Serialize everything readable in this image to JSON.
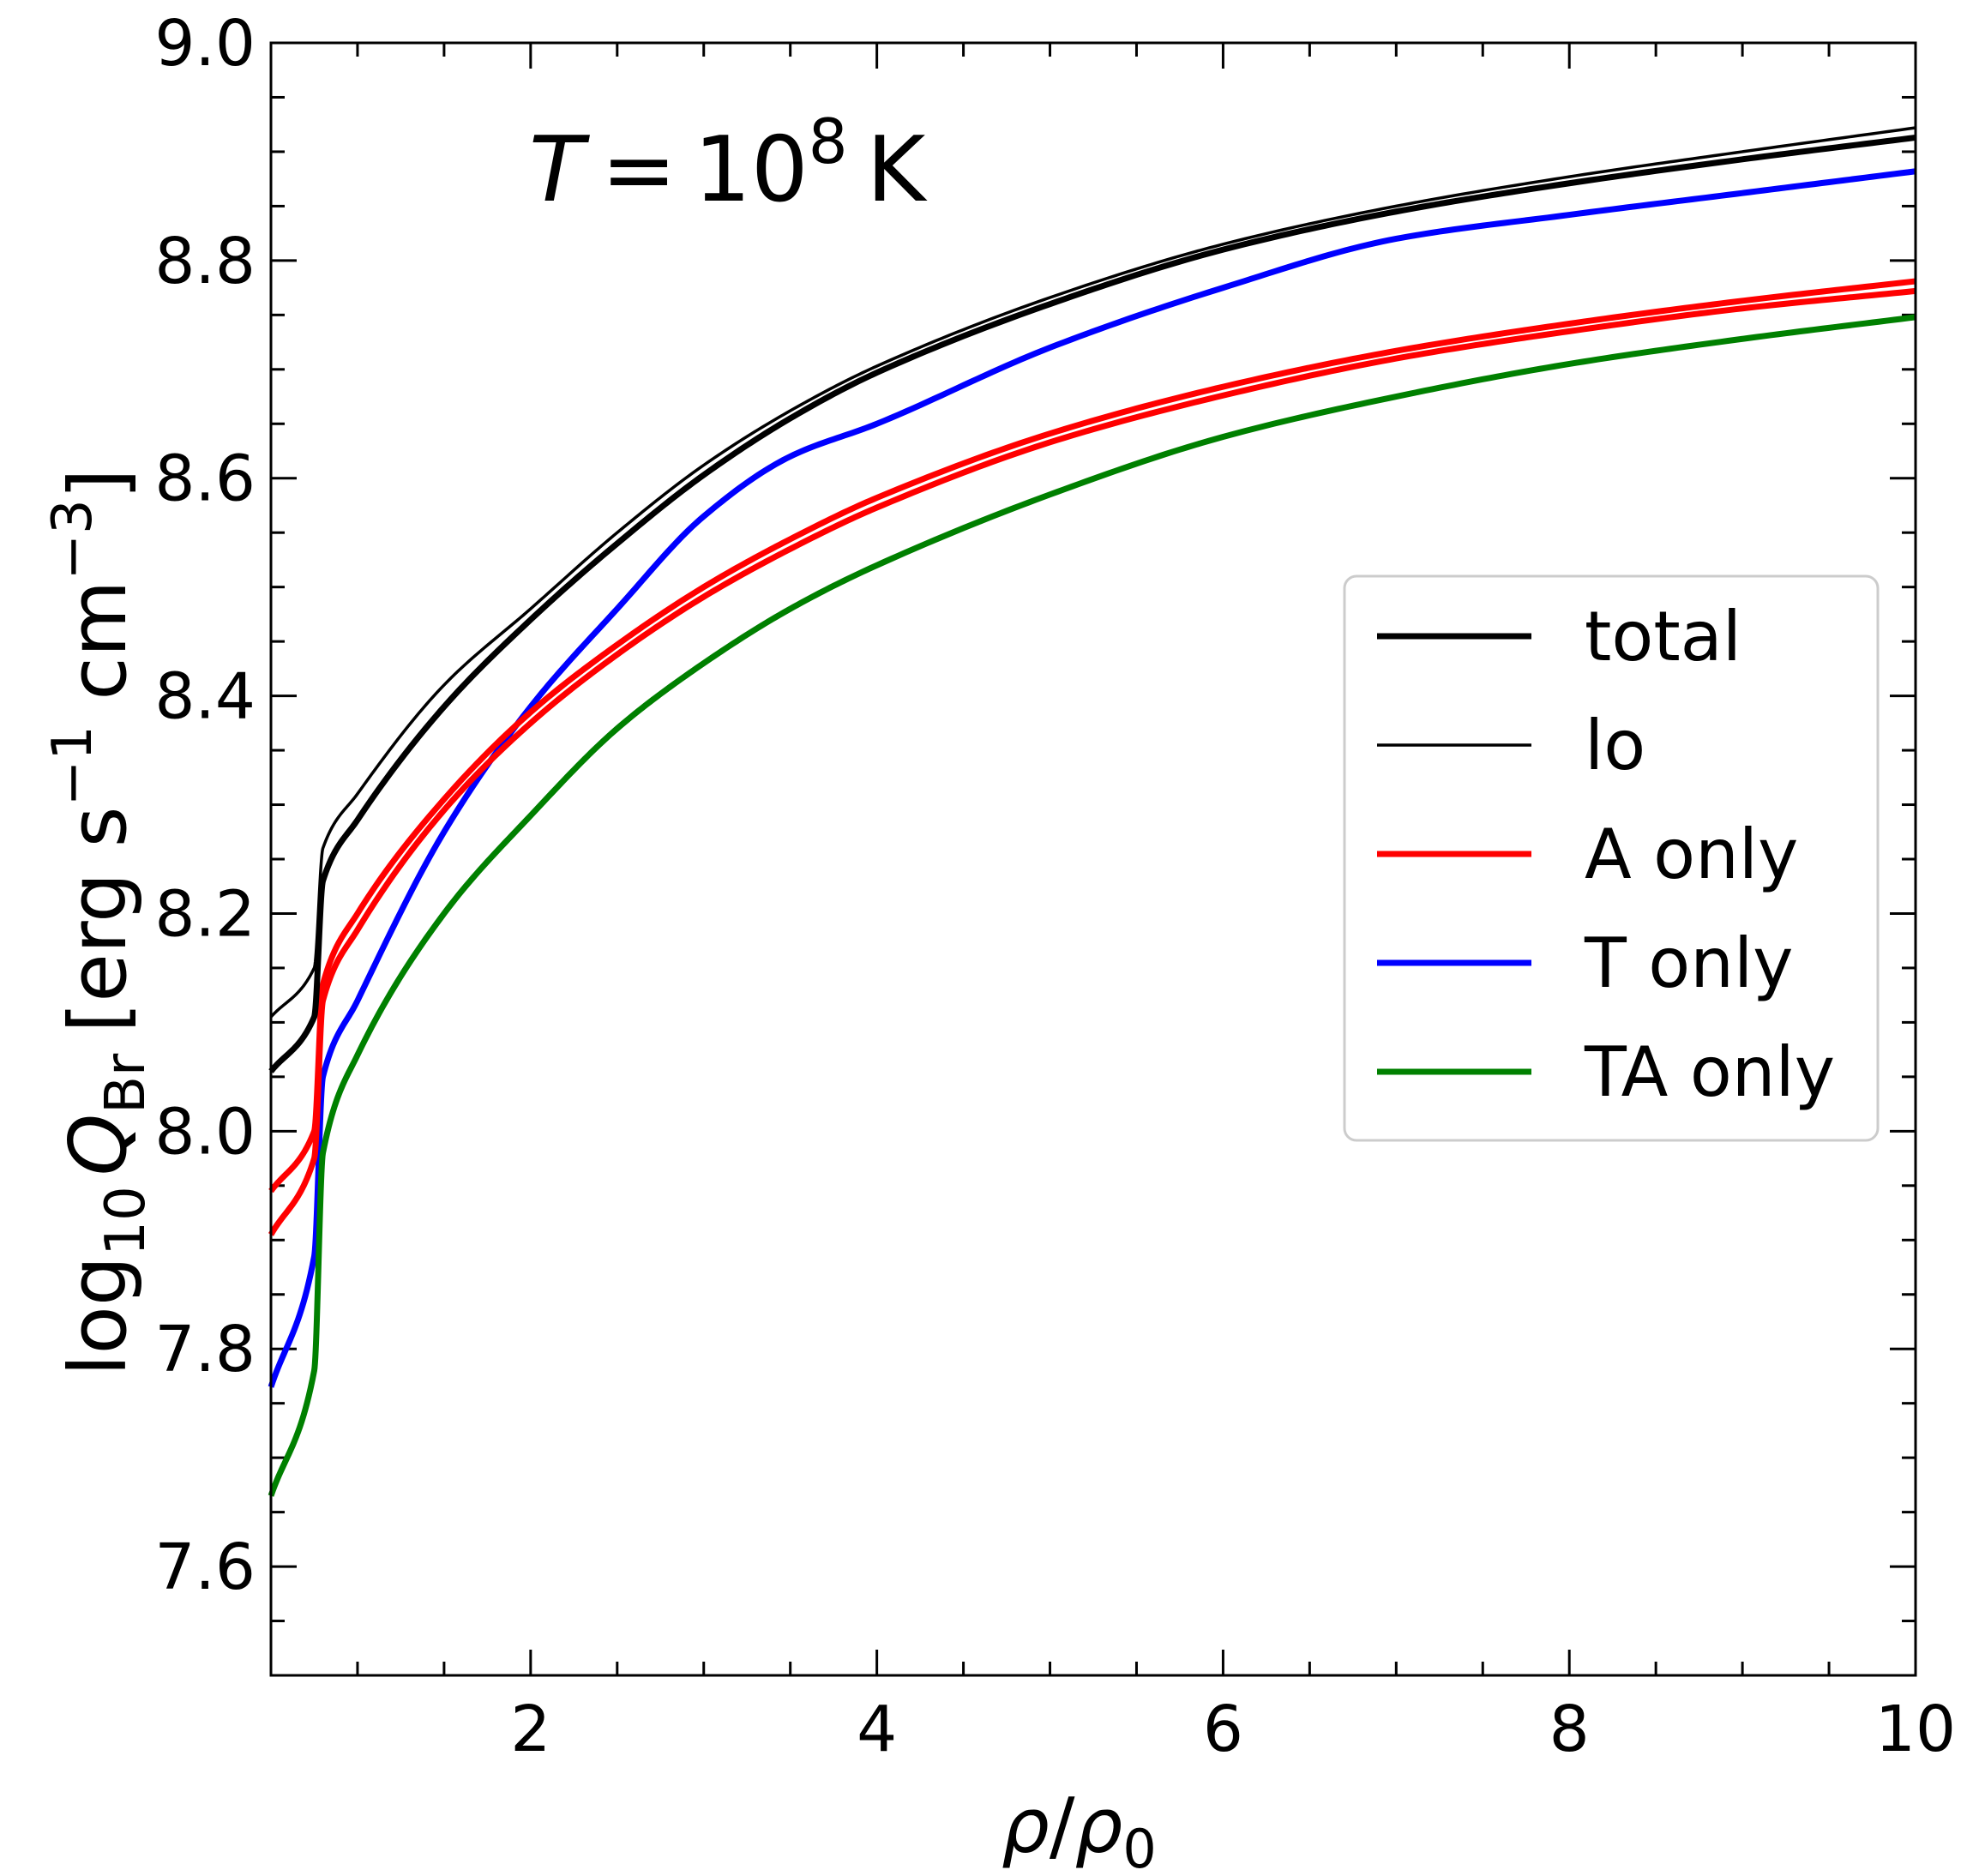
{
  "chart_data": {
    "type": "line",
    "annotation": {
      "T": "T",
      "equals": "=",
      "base": "10",
      "exponent": "8",
      "unit": "K"
    },
    "xlabel": {
      "rho": "ρ",
      "slash": "/",
      "rho0": "ρ",
      "rho0_sub": "0"
    },
    "ylabel": {
      "log": "log",
      "log_sub": "10",
      "Q": "Q",
      "Q_sub": "Br",
      "units_open": "[erg s",
      "s_exp": "−1",
      "cm": " cm",
      "cm_exp": "−3",
      "units_close": "]"
    },
    "xlim": [
      0.5,
      10
    ],
    "ylim": [
      7.5,
      9.0
    ],
    "xticks": [
      2,
      4,
      6,
      8,
      10
    ],
    "xtick_labels": [
      "2",
      "4",
      "6",
      "8",
      "10"
    ],
    "xminor_step": 0.5,
    "yticks": [
      7.6,
      7.8,
      8.0,
      8.2,
      8.4,
      8.6,
      8.8,
      9.0
    ],
    "ytick_labels": [
      "7.6",
      "7.8",
      "8.0",
      "8.2",
      "8.4",
      "8.6",
      "8.8",
      "9.0"
    ],
    "yminor_step": 0.05,
    "legend_position": "center-right",
    "legend": [
      {
        "label": "total",
        "color": "#000000",
        "style": "thick"
      },
      {
        "label": "lo",
        "color": "#000000",
        "style": "thin"
      },
      {
        "label": "A only",
        "color": "#ff0000",
        "style": "thick"
      },
      {
        "label": "T only",
        "color": "#0000ff",
        "style": "thick"
      },
      {
        "label": "TA only",
        "color": "#008000",
        "style": "thick"
      }
    ],
    "series": [
      {
        "name": "total",
        "color": "#000000",
        "style": "thick",
        "x": [
          0.5,
          0.75,
          0.8,
          1.0,
          1.5,
          2.0,
          2.5,
          3.0,
          3.5,
          4.0,
          5.0,
          6.0,
          7.0,
          8.0,
          9.0,
          10.0
        ],
        "y": [
          8.055,
          8.105,
          8.23,
          8.286,
          8.39,
          8.47,
          8.54,
          8.603,
          8.655,
          8.697,
          8.76,
          8.81,
          8.845,
          8.871,
          8.893,
          8.913
        ]
      },
      {
        "name": "lo",
        "color": "#000000",
        "style": "thin",
        "x": [
          0.5,
          0.75,
          0.8,
          1.0,
          1.5,
          2.0,
          2.5,
          3.0,
          3.5,
          4.0,
          5.0,
          6.0,
          7.0,
          8.0,
          9.0,
          10.0
        ],
        "y": [
          8.105,
          8.15,
          8.26,
          8.31,
          8.41,
          8.48,
          8.55,
          8.612,
          8.662,
          8.703,
          8.766,
          8.815,
          8.85,
          8.877,
          8.9,
          8.922
        ]
      },
      {
        "name": "A only (upper)",
        "color": "#ff0000",
        "style": "thick",
        "x": [
          0.5,
          0.75,
          0.8,
          1.0,
          1.5,
          2.0,
          2.5,
          3.0,
          3.5,
          4.0,
          5.0,
          6.0,
          7.0,
          8.0,
          9.0,
          10.0
        ],
        "y": [
          7.945,
          8.0,
          8.135,
          8.2,
          8.305,
          8.385,
          8.447,
          8.5,
          8.544,
          8.582,
          8.641,
          8.684,
          8.717,
          8.742,
          8.763,
          8.781
        ]
      },
      {
        "name": "A only (lower)",
        "color": "#ff0000",
        "style": "thick",
        "x": [
          0.5,
          0.75,
          0.8,
          1.0,
          1.5,
          2.0,
          2.5,
          3.0,
          3.5,
          4.0,
          5.0,
          6.0,
          7.0,
          8.0,
          9.0,
          10.0
        ],
        "y": [
          7.905,
          7.975,
          8.12,
          8.185,
          8.295,
          8.375,
          8.438,
          8.491,
          8.535,
          8.573,
          8.633,
          8.676,
          8.71,
          8.735,
          8.756,
          8.772
        ]
      },
      {
        "name": "T only",
        "color": "#0000ff",
        "style": "thick",
        "x": [
          0.5,
          0.75,
          0.8,
          1.0,
          1.5,
          2.0,
          2.5,
          3.0,
          3.5,
          4.0,
          5.0,
          6.0,
          7.0,
          8.0,
          9.0,
          10.0
        ],
        "y": [
          7.765,
          7.885,
          8.05,
          8.12,
          8.275,
          8.39,
          8.48,
          8.565,
          8.62,
          8.65,
          8.72,
          8.775,
          8.82,
          8.842,
          8.862,
          8.882
        ]
      },
      {
        "name": "TA only",
        "color": "#008000",
        "style": "thick",
        "x": [
          0.5,
          0.75,
          0.8,
          1.0,
          1.5,
          2.0,
          2.5,
          3.0,
          3.5,
          4.0,
          5.0,
          6.0,
          7.0,
          8.0,
          9.0,
          10.0
        ],
        "y": [
          7.665,
          7.78,
          7.98,
          8.07,
          8.2,
          8.29,
          8.37,
          8.43,
          8.48,
          8.52,
          8.585,
          8.638,
          8.675,
          8.705,
          8.728,
          8.748
        ]
      }
    ]
  }
}
